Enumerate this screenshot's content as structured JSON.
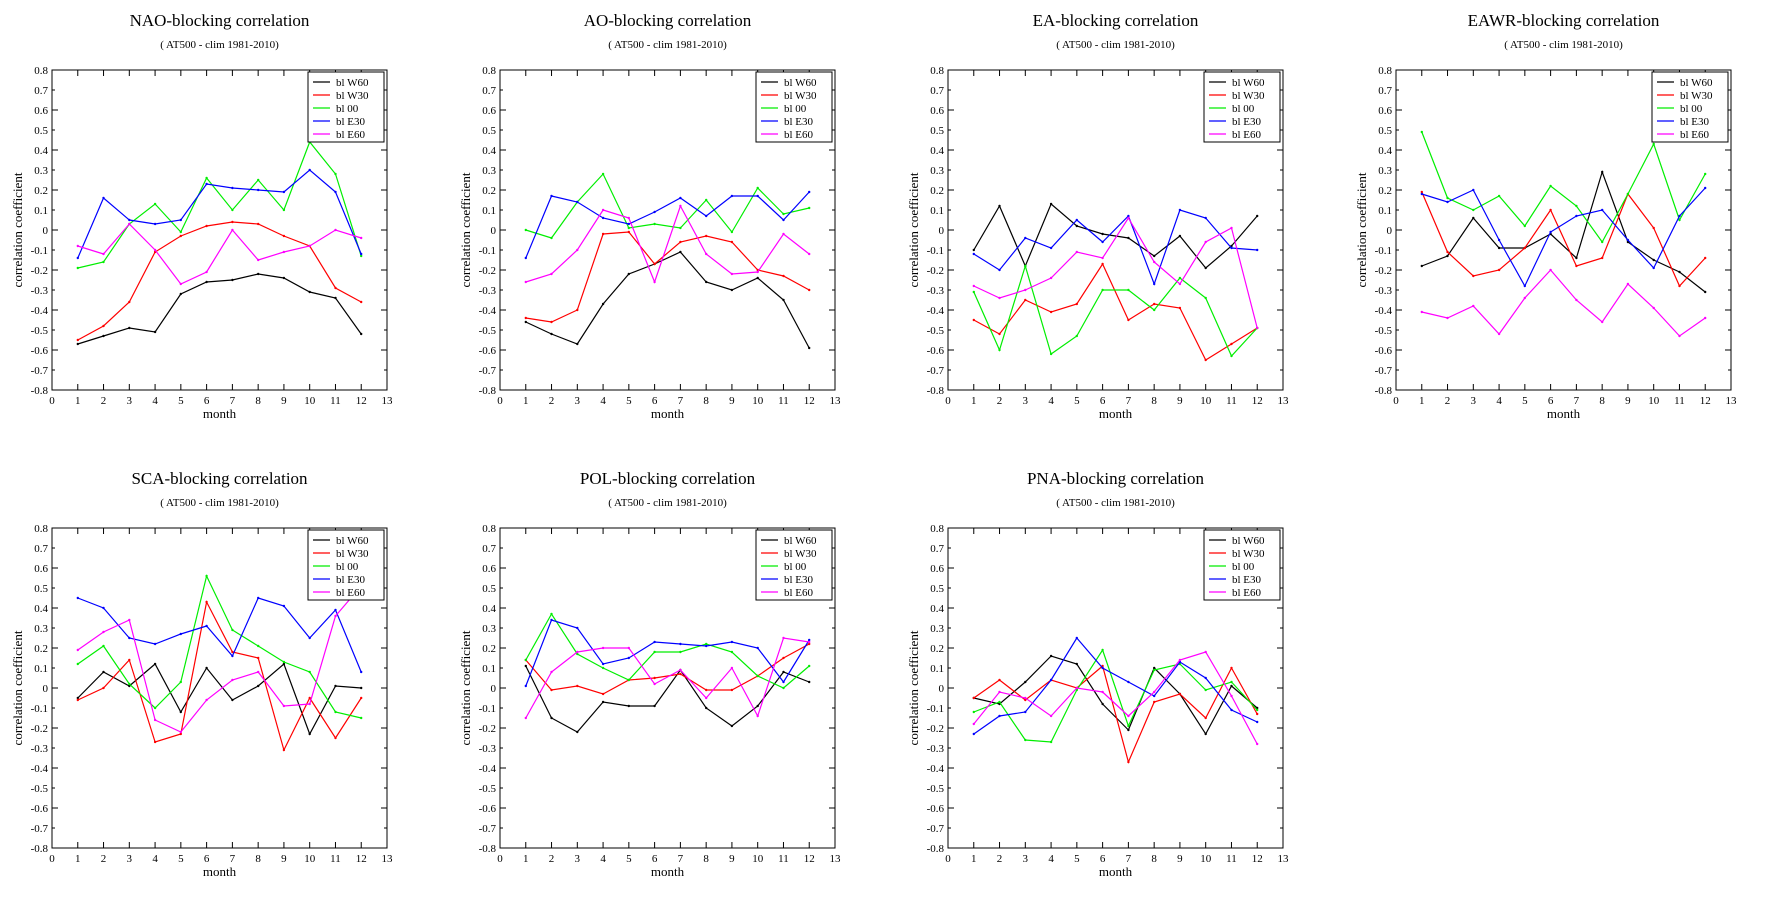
{
  "figure": {
    "series_names": [
      "bl W60",
      "bl W30",
      "bl 00",
      "bl E30",
      "bl E60"
    ],
    "series_colors": [
      "#000000",
      "#ff0000",
      "#00ee00",
      "#0000ff",
      "#ff00ff"
    ]
  },
  "chart_data": [
    {
      "type": "line",
      "title": "NAO-blocking correlation",
      "subtitle": "( AT500 - clim 1981-2010)",
      "xlabel": "month",
      "ylabel": "correlation coefficient",
      "xlim": [
        0,
        13
      ],
      "ylim": [
        -0.8,
        0.8
      ],
      "x": [
        1,
        2,
        3,
        4,
        5,
        6,
        7,
        8,
        9,
        10,
        11,
        12
      ],
      "legend": "top-right",
      "series": [
        {
          "name": "bl W60",
          "color": "#000000",
          "values": [
            -0.57,
            -0.53,
            -0.49,
            -0.51,
            -0.32,
            -0.26,
            -0.25,
            -0.22,
            -0.24,
            -0.31,
            -0.34,
            -0.52
          ]
        },
        {
          "name": "bl W30",
          "color": "#ff0000",
          "values": [
            -0.55,
            -0.48,
            -0.36,
            -0.11,
            -0.03,
            0.02,
            0.04,
            0.03,
            -0.03,
            -0.08,
            -0.29,
            -0.36
          ]
        },
        {
          "name": "bl 00",
          "color": "#00ee00",
          "values": [
            -0.19,
            -0.16,
            0.03,
            0.13,
            -0.01,
            0.26,
            0.1,
            0.25,
            0.1,
            0.44,
            0.28,
            -0.13
          ]
        },
        {
          "name": "bl E30",
          "color": "#0000ff",
          "values": [
            -0.14,
            0.16,
            0.05,
            0.03,
            0.05,
            0.23,
            0.21,
            0.2,
            0.19,
            0.3,
            0.19,
            -0.12
          ]
        },
        {
          "name": "bl E60",
          "color": "#ff00ff",
          "values": [
            -0.08,
            -0.12,
            0.03,
            -0.1,
            -0.27,
            -0.21,
            0.0,
            -0.15,
            -0.11,
            -0.08,
            0.0,
            -0.04
          ]
        }
      ]
    },
    {
      "type": "line",
      "title": "AO-blocking correlation",
      "subtitle": "( AT500 - clim 1981-2010)",
      "xlabel": "month",
      "ylabel": "correlation coefficient",
      "xlim": [
        0,
        13
      ],
      "ylim": [
        -0.8,
        0.8
      ],
      "x": [
        1,
        2,
        3,
        4,
        5,
        6,
        7,
        8,
        9,
        10,
        11,
        12
      ],
      "legend": "top-right",
      "series": [
        {
          "name": "bl W60",
          "color": "#000000",
          "values": [
            -0.46,
            -0.52,
            -0.57,
            -0.37,
            -0.22,
            -0.17,
            -0.11,
            -0.26,
            -0.3,
            -0.24,
            -0.35,
            -0.59
          ]
        },
        {
          "name": "bl W30",
          "color": "#ff0000",
          "values": [
            -0.44,
            -0.46,
            -0.4,
            -0.02,
            -0.01,
            -0.17,
            -0.06,
            -0.03,
            -0.06,
            -0.2,
            -0.23,
            -0.3
          ]
        },
        {
          "name": "bl 00",
          "color": "#00ee00",
          "values": [
            0.0,
            -0.04,
            0.14,
            0.28,
            0.01,
            0.03,
            0.01,
            0.15,
            -0.01,
            0.21,
            0.08,
            0.11
          ]
        },
        {
          "name": "bl E30",
          "color": "#0000ff",
          "values": [
            -0.14,
            0.17,
            0.14,
            0.06,
            0.03,
            0.09,
            0.16,
            0.07,
            0.17,
            0.17,
            0.05,
            0.19
          ]
        },
        {
          "name": "bl E60",
          "color": "#ff00ff",
          "values": [
            -0.26,
            -0.22,
            -0.1,
            0.1,
            0.06,
            -0.26,
            0.12,
            -0.12,
            -0.22,
            -0.21,
            -0.02,
            -0.12
          ]
        }
      ]
    },
    {
      "type": "line",
      "title": "EA-blocking correlation",
      "subtitle": "( AT500 - clim 1981-2010)",
      "xlabel": "month",
      "ylabel": "correlation coefficient",
      "xlim": [
        0,
        13
      ],
      "ylim": [
        -0.8,
        0.8
      ],
      "x": [
        1,
        2,
        3,
        4,
        5,
        6,
        7,
        8,
        9,
        10,
        11,
        12
      ],
      "legend": "top-right",
      "series": [
        {
          "name": "bl W60",
          "color": "#000000",
          "values": [
            -0.1,
            0.12,
            -0.18,
            0.13,
            0.02,
            -0.02,
            -0.04,
            -0.13,
            -0.03,
            -0.19,
            -0.08,
            0.07
          ]
        },
        {
          "name": "bl W30",
          "color": "#ff0000",
          "values": [
            -0.45,
            -0.52,
            -0.35,
            -0.41,
            -0.37,
            -0.17,
            -0.45,
            -0.37,
            -0.39,
            -0.65,
            -0.57,
            -0.49
          ]
        },
        {
          "name": "bl 00",
          "color": "#00ee00",
          "values": [
            -0.31,
            -0.6,
            -0.18,
            -0.62,
            -0.53,
            -0.3,
            -0.3,
            -0.4,
            -0.24,
            -0.34,
            -0.63,
            -0.49
          ]
        },
        {
          "name": "bl E30",
          "color": "#0000ff",
          "values": [
            -0.12,
            -0.2,
            -0.04,
            -0.09,
            0.05,
            -0.06,
            0.07,
            -0.27,
            0.1,
            0.06,
            -0.09,
            -0.1
          ]
        },
        {
          "name": "bl E60",
          "color": "#ff00ff",
          "values": [
            -0.28,
            -0.34,
            -0.3,
            -0.24,
            -0.11,
            -0.14,
            0.06,
            -0.16,
            -0.27,
            -0.06,
            0.01,
            -0.49
          ]
        }
      ]
    },
    {
      "type": "line",
      "title": "EAWR-blocking correlation",
      "subtitle": "( AT500 - clim 1981-2010)",
      "xlabel": "month",
      "ylabel": "correlation coefficient",
      "xlim": [
        0,
        13
      ],
      "ylim": [
        -0.8,
        0.8
      ],
      "x": [
        1,
        2,
        3,
        4,
        5,
        6,
        7,
        8,
        9,
        10,
        11,
        12
      ],
      "legend": "top-right",
      "series": [
        {
          "name": "bl W60",
          "color": "#000000",
          "values": [
            -0.18,
            -0.13,
            0.06,
            -0.09,
            -0.09,
            -0.02,
            -0.14,
            0.29,
            -0.06,
            -0.15,
            -0.21,
            -0.31
          ]
        },
        {
          "name": "bl W30",
          "color": "#ff0000",
          "values": [
            0.19,
            -0.11,
            -0.23,
            -0.2,
            -0.09,
            0.1,
            -0.18,
            -0.14,
            0.18,
            0.01,
            -0.28,
            -0.14
          ]
        },
        {
          "name": "bl 00",
          "color": "#00ee00",
          "values": [
            0.49,
            0.16,
            0.1,
            0.17,
            0.02,
            0.22,
            0.12,
            -0.06,
            0.18,
            0.43,
            0.05,
            0.28
          ]
        },
        {
          "name": "bl E30",
          "color": "#0000ff",
          "values": [
            0.18,
            0.14,
            0.2,
            -0.05,
            -0.28,
            -0.01,
            0.07,
            0.1,
            -0.05,
            -0.19,
            0.07,
            0.21
          ]
        },
        {
          "name": "bl E60",
          "color": "#ff00ff",
          "values": [
            -0.41,
            -0.44,
            -0.38,
            -0.52,
            -0.34,
            -0.2,
            -0.35,
            -0.46,
            -0.27,
            -0.39,
            -0.53,
            -0.44
          ]
        }
      ]
    },
    {
      "type": "line",
      "title": "SCA-blocking correlation",
      "subtitle": "( AT500 - clim 1981-2010)",
      "xlabel": "month",
      "ylabel": "correlation coefficient",
      "xlim": [
        0,
        13
      ],
      "ylim": [
        -0.8,
        0.8
      ],
      "x": [
        1,
        2,
        3,
        4,
        5,
        6,
        7,
        8,
        9,
        10,
        11,
        12
      ],
      "legend": "top-right",
      "series": [
        {
          "name": "bl W60",
          "color": "#000000",
          "values": [
            -0.05,
            0.08,
            0.01,
            0.12,
            -0.12,
            0.1,
            -0.06,
            0.01,
            0.12,
            -0.23,
            0.01,
            0.0
          ]
        },
        {
          "name": "bl W30",
          "color": "#ff0000",
          "values": [
            -0.06,
            0.0,
            0.14,
            -0.27,
            -0.23,
            0.43,
            0.18,
            0.15,
            -0.31,
            -0.05,
            -0.25,
            -0.05
          ]
        },
        {
          "name": "bl 00",
          "color": "#00ee00",
          "values": [
            0.12,
            0.21,
            0.02,
            -0.1,
            0.03,
            0.56,
            0.29,
            0.21,
            0.13,
            0.08,
            -0.12,
            -0.15
          ]
        },
        {
          "name": "bl E30",
          "color": "#0000ff",
          "values": [
            0.45,
            0.4,
            0.25,
            0.22,
            0.27,
            0.31,
            0.16,
            0.45,
            0.41,
            0.25,
            0.39,
            0.08
          ]
        },
        {
          "name": "bl E60",
          "color": "#ff00ff",
          "values": [
            0.19,
            0.28,
            0.34,
            -0.16,
            -0.22,
            -0.06,
            0.04,
            0.08,
            -0.09,
            -0.08,
            0.36,
            0.51
          ]
        }
      ]
    },
    {
      "type": "line",
      "title": "POL-blocking correlation",
      "subtitle": "( AT500 - clim 1981-2010)",
      "xlabel": "month",
      "ylabel": "correlation coefficient",
      "xlim": [
        0,
        13
      ],
      "ylim": [
        -0.8,
        0.8
      ],
      "x": [
        1,
        2,
        3,
        4,
        5,
        6,
        7,
        8,
        9,
        10,
        11,
        12
      ],
      "legend": "top-right",
      "series": [
        {
          "name": "bl W60",
          "color": "#000000",
          "values": [
            0.11,
            -0.15,
            -0.22,
            -0.07,
            -0.09,
            -0.09,
            0.09,
            -0.1,
            -0.19,
            -0.09,
            0.08,
            0.03
          ]
        },
        {
          "name": "bl W30",
          "color": "#ff0000",
          "values": [
            0.14,
            -0.01,
            0.01,
            -0.03,
            0.04,
            0.05,
            0.07,
            -0.01,
            -0.01,
            0.06,
            0.15,
            0.22
          ]
        },
        {
          "name": "bl 00",
          "color": "#00ee00",
          "values": [
            0.14,
            0.37,
            0.17,
            0.1,
            0.04,
            0.18,
            0.18,
            0.22,
            0.18,
            0.06,
            0.0,
            0.11
          ]
        },
        {
          "name": "bl E30",
          "color": "#0000ff",
          "values": [
            0.01,
            0.34,
            0.3,
            0.12,
            0.15,
            0.23,
            0.22,
            0.21,
            0.23,
            0.2,
            0.03,
            0.24
          ]
        },
        {
          "name": "bl E60",
          "color": "#ff00ff",
          "values": [
            -0.15,
            0.08,
            0.18,
            0.2,
            0.2,
            0.02,
            0.09,
            -0.05,
            0.1,
            -0.14,
            0.25,
            0.23
          ]
        }
      ]
    },
    {
      "type": "line",
      "title": "PNA-blocking correlation",
      "subtitle": "( AT500 - clim 1981-2010)",
      "xlabel": "month",
      "ylabel": "correlation coefficient",
      "xlim": [
        0,
        13
      ],
      "ylim": [
        -0.8,
        0.8
      ],
      "x": [
        1,
        2,
        3,
        4,
        5,
        6,
        7,
        8,
        9,
        10,
        11,
        12
      ],
      "legend": "top-right",
      "series": [
        {
          "name": "bl W60",
          "color": "#000000",
          "values": [
            -0.05,
            -0.08,
            0.03,
            0.16,
            0.12,
            -0.08,
            -0.21,
            0.1,
            -0.03,
            -0.23,
            0.01,
            -0.1
          ]
        },
        {
          "name": "bl W30",
          "color": "#ff0000",
          "values": [
            -0.05,
            0.04,
            -0.06,
            0.04,
            0.0,
            0.11,
            -0.37,
            -0.07,
            -0.03,
            -0.15,
            0.1,
            -0.13
          ]
        },
        {
          "name": "bl 00",
          "color": "#00ee00",
          "values": [
            -0.12,
            -0.07,
            -0.26,
            -0.27,
            -0.01,
            0.19,
            -0.19,
            0.09,
            0.12,
            -0.01,
            0.03,
            -0.11
          ]
        },
        {
          "name": "bl E30",
          "color": "#0000ff",
          "values": [
            -0.23,
            -0.14,
            -0.12,
            0.04,
            0.25,
            0.1,
            0.03,
            -0.04,
            0.13,
            0.05,
            -0.11,
            -0.17
          ]
        },
        {
          "name": "bl E60",
          "color": "#ff00ff",
          "values": [
            -0.18,
            -0.02,
            -0.05,
            -0.14,
            0.0,
            -0.02,
            -0.14,
            -0.02,
            0.14,
            0.18,
            -0.04,
            -0.28
          ]
        }
      ]
    }
  ]
}
